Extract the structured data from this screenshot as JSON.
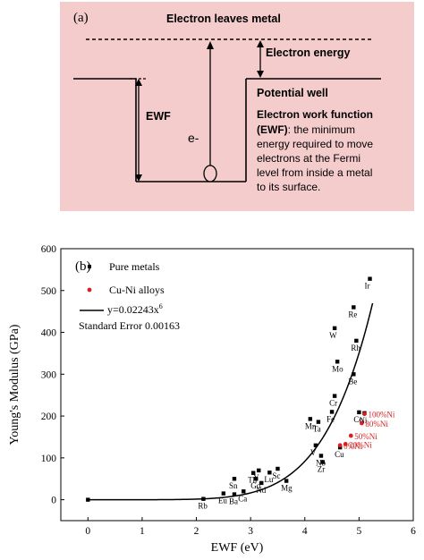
{
  "panel_a": {
    "label": "(a)",
    "top_text": "Electron leaves metal",
    "electron_energy": "Electron energy",
    "potential_well": "Potential well",
    "ewf": "EWF",
    "electron": "e-",
    "def_lines": [
      "Electron work function",
      "(EWF): the minimum",
      "energy required to move",
      "electrons at the Fermi",
      "level from inside a metal",
      "to its surface."
    ],
    "colors": {
      "background": "#f5cccc",
      "ink": "#000000"
    }
  },
  "chart_data": {
    "type": "scatter",
    "panel_label": "(b)",
    "xlabel": "EWF (eV)",
    "ylabel": "Young's Modulus (GPa)",
    "xlim": [
      -0.5,
      6
    ],
    "ylim": [
      -50,
      600
    ],
    "xticks": [
      0,
      1,
      2,
      3,
      4,
      5,
      6
    ],
    "yticks": [
      0,
      100,
      200,
      300,
      400,
      500,
      600
    ],
    "legend": {
      "placement": "top-left",
      "entries": [
        "Pure metals",
        "Cu-Ni alloys"
      ],
      "fit_label": "y=0.02243x",
      "fit_exponent": "6",
      "error_text": "Standard Error 0.00163"
    },
    "fit": {
      "coefficient": 0.02243,
      "exponent": 6,
      "x_range": [
        0,
        5.25
      ]
    },
    "series": [
      {
        "name": "Pure metals",
        "color": "#000000",
        "points": [
          {
            "x": 0.0,
            "y": 0,
            "label": ""
          },
          {
            "x": 2.13,
            "y": 2,
            "label": "Rb"
          },
          {
            "x": 2.5,
            "y": 15,
            "label": "Eu"
          },
          {
            "x": 2.7,
            "y": 13,
            "label": "Ba"
          },
          {
            "x": 2.87,
            "y": 20,
            "label": "Ca"
          },
          {
            "x": 2.7,
            "y": 50,
            "label": "Sn"
          },
          {
            "x": 3.05,
            "y": 64,
            "label": "Th"
          },
          {
            "x": 3.15,
            "y": 70,
            "label": "Y"
          },
          {
            "x": 3.1,
            "y": 50,
            "label": "Gd"
          },
          {
            "x": 3.2,
            "y": 40,
            "label": "Nd"
          },
          {
            "x": 3.35,
            "y": 65,
            "label": "Lu"
          },
          {
            "x": 3.5,
            "y": 74,
            "label": "Sc"
          },
          {
            "x": 3.66,
            "y": 45,
            "label": "Mg"
          },
          {
            "x": 4.1,
            "y": 193,
            "label": "Mn"
          },
          {
            "x": 4.25,
            "y": 186,
            "label": "Ta"
          },
          {
            "x": 4.5,
            "y": 210,
            "label": "Fe"
          },
          {
            "x": 4.55,
            "y": 248,
            "label": "Cr"
          },
          {
            "x": 4.2,
            "y": 130,
            "label": "V"
          },
          {
            "x": 4.3,
            "y": 105,
            "label": "Nb"
          },
          {
            "x": 4.33,
            "y": 90,
            "label": "Zr"
          },
          {
            "x": 4.6,
            "y": 330,
            "label": "Mo"
          },
          {
            "x": 4.55,
            "y": 410,
            "label": "W"
          },
          {
            "x": 4.9,
            "y": 300,
            "label": "Be"
          },
          {
            "x": 4.95,
            "y": 380,
            "label": "Rh"
          },
          {
            "x": 4.9,
            "y": 460,
            "label": "Re"
          },
          {
            "x": 5.2,
            "y": 528,
            "label": "Ir"
          },
          {
            "x": 5.0,
            "y": 209,
            "label": "Co"
          },
          {
            "x": 5.1,
            "y": 207,
            "label": "Ni"
          },
          {
            "x": 4.65,
            "y": 125,
            "label": "Cu"
          }
        ]
      },
      {
        "name": "Cu-Ni alloys",
        "color": "#d42020",
        "points": [
          {
            "x": 4.65,
            "y": 130,
            "label": "0%Ni"
          },
          {
            "x": 4.75,
            "y": 133,
            "label": "20%Ni"
          },
          {
            "x": 4.85,
            "y": 153,
            "label": "50%Ni"
          },
          {
            "x": 5.05,
            "y": 183,
            "label": "80%Ni"
          },
          {
            "x": 5.1,
            "y": 205,
            "label": "100%Ni"
          }
        ]
      }
    ]
  }
}
